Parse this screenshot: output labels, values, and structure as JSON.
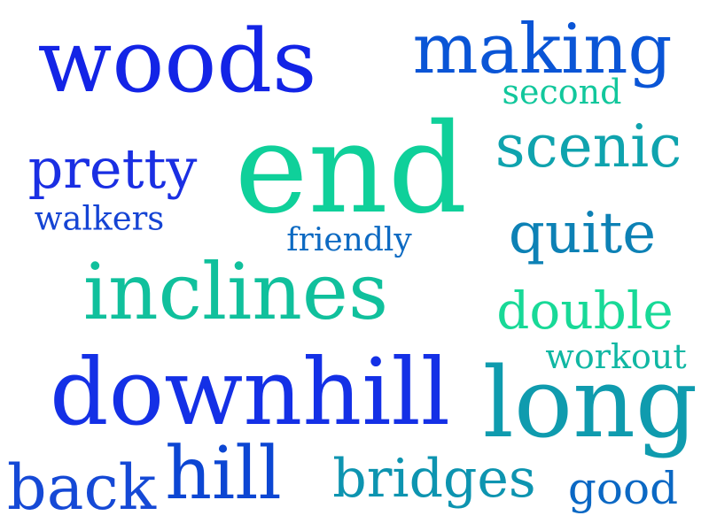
{
  "word_cloud": {
    "words": [
      {
        "text": "woods",
        "color": "#1324e6"
      },
      {
        "text": "making",
        "color": "#0a55d6"
      },
      {
        "text": "second",
        "color": "#12c79c"
      },
      {
        "text": "scenic",
        "color": "#0fa3ae"
      },
      {
        "text": "pretty",
        "color": "#1a2fe3"
      },
      {
        "text": "end",
        "color": "#0fd09a"
      },
      {
        "text": "walkers",
        "color": "#1544d4"
      },
      {
        "text": "quite",
        "color": "#0d81b5"
      },
      {
        "text": "friendly",
        "color": "#0d6ac2"
      },
      {
        "text": "inclines",
        "color": "#10c09c"
      },
      {
        "text": "double",
        "color": "#18d997"
      },
      {
        "text": "workout",
        "color": "#10b7a3"
      },
      {
        "text": "downhill",
        "color": "#1430e6"
      },
      {
        "text": "long",
        "color": "#0f9bae"
      },
      {
        "text": "back",
        "color": "#1549d6"
      },
      {
        "text": "hill",
        "color": "#0c46d3"
      },
      {
        "text": "bridges",
        "color": "#0d94b0"
      },
      {
        "text": "good",
        "color": "#0b68c4"
      }
    ]
  }
}
